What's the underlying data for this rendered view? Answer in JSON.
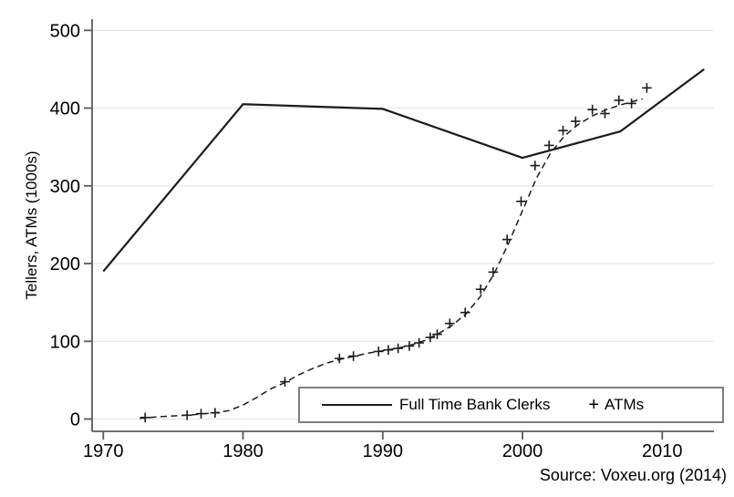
{
  "figure": {
    "background": "#ffffff",
    "text_color": "#000000",
    "axis_color": "#5a5a5a",
    "grid_color": "#e6e6e6",
    "series_color": "#1c1c1c",
    "legend_border_color": "#7e7e7e"
  },
  "chart_data": {
    "type": "line",
    "title": "",
    "xlabel": "",
    "ylabel": "Tellers, ATMs (1000s)",
    "xlim": [
      1969.2,
      2013.7
    ],
    "ylim": [
      0,
      500
    ],
    "x_ticks": [
      1970,
      1980,
      1990,
      2000,
      2010
    ],
    "y_ticks": [
      0,
      100,
      200,
      300,
      400,
      500
    ],
    "grid": "horizontal",
    "legend_position": "inside-bottom",
    "series": [
      {
        "name": "Full Time Bank Clerks",
        "type": "line",
        "dash": "solid",
        "x": [
          1970,
          1980,
          1990,
          2000,
          2007,
          2013
        ],
        "y": [
          190,
          405,
          399,
          336,
          370,
          450
        ]
      },
      {
        "name": "ATMs",
        "type": "scatter",
        "marker": "plus",
        "x": [
          1973,
          1976,
          1977,
          1978,
          1983,
          1986.9,
          1987.9,
          1989.7,
          1990.4,
          1991.1,
          1991.9,
          1992.6,
          1993.4,
          1993.9,
          1994.8,
          1995.9,
          1997,
          1997.9,
          1998.9,
          1999.9,
          2000.9,
          2001.9,
          2002.9,
          2003.8,
          2005,
          2005.9,
          2006.9,
          2007.8,
          2008.9
        ],
        "y": [
          2,
          5,
          7,
          8,
          48,
          78,
          81,
          87,
          89,
          91,
          94,
          98,
          105,
          109,
          123,
          137,
          167,
          189,
          231,
          280,
          326,
          352,
          371,
          383,
          398,
          393,
          410,
          406,
          426
        ]
      },
      {
        "name": "ATMs trend",
        "type": "line",
        "dash": "dashed",
        "x": [
          1972.6,
          1974,
          1976,
          1978,
          1979,
          1980,
          1981,
          1982,
          1983,
          1984,
          1985,
          1986,
          1987,
          1988,
          1989,
          1990,
          1991,
          1992,
          1993,
          1994,
          1995,
          1996,
          1997,
          1998,
          1999,
          2000,
          2001,
          2002,
          2003,
          2004,
          2005,
          2006,
          2007,
          2008,
          2008.6
        ],
        "y": [
          1,
          3,
          5,
          8,
          11,
          18,
          28,
          39,
          47,
          57,
          65,
          72,
          77,
          81,
          85,
          88,
          91,
          95,
          101,
          110,
          121,
          136,
          158,
          188,
          226,
          268,
          310,
          342,
          364,
          379,
          390,
          398,
          404,
          409,
          412
        ]
      }
    ]
  },
  "legend": {
    "clerks_label": "Full Time Bank Clerks",
    "atms_marker": "+",
    "atms_label": "ATMs"
  },
  "source": {
    "text": "Source: Voxeu.org (2014)"
  }
}
